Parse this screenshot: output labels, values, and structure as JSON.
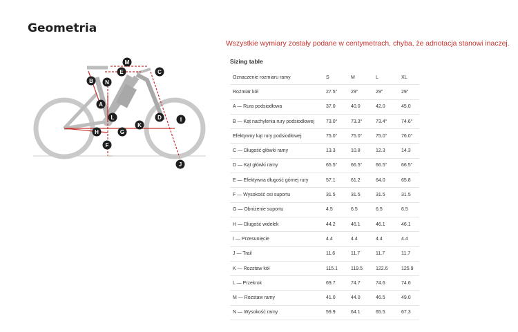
{
  "page": {
    "title": "Geometria",
    "note": "Wszystkie wymiary zostały podane w centymetrach, chyba, że adnotacja stanowi inaczej.",
    "accent_color": "#c8302c"
  },
  "diagram": {
    "image": "bike-geometry-diagram",
    "labels": [
      "M",
      "E",
      "C",
      "B",
      "N",
      "A",
      "L",
      "H",
      "G",
      "K",
      "D",
      "I",
      "F",
      "J"
    ]
  },
  "sizing": {
    "title": "Sizing table",
    "headers": [
      "Oznaczenie rozmiaru ramy",
      "S",
      "M",
      "L",
      "XL"
    ],
    "rows": [
      [
        "Rozmiar kół",
        "27.5\"",
        "29\"",
        "29\"",
        "29\""
      ],
      [
        "A — Rura podsiodłowa",
        "37.0",
        "40.0",
        "42.0",
        "45.0"
      ],
      [
        "B — Kąt nachylenia rury podsiodłowej",
        "73.0°",
        "73.3°",
        "73.4°",
        "74.6°"
      ],
      [
        "Efektywny kąt rury podsiodłowej",
        "75.0°",
        "75.0°",
        "75.0°",
        "76.0°"
      ],
      [
        "C — Długość główki ramy",
        "13.3",
        "10.8",
        "12.3",
        "14.3"
      ],
      [
        "D — Kąt główki ramy",
        "65.5°",
        "66.5°",
        "66.5°",
        "66.5°"
      ],
      [
        "E — Efektywna długość górnej rury",
        "57.1",
        "61.2",
        "64.0",
        "65.8"
      ],
      [
        "F — Wysokość osi suportu",
        "31.5",
        "31.5",
        "31.5",
        "31.5"
      ],
      [
        "G — Obniżenie suportu",
        "4.5",
        "6.5",
        "6.5",
        "6.5"
      ],
      [
        "H — Długość widełek",
        "44.2",
        "46.1",
        "46.1",
        "46.1"
      ],
      [
        "I — Przesunięcie",
        "4.4",
        "4.4",
        "4.4",
        "4.4"
      ],
      [
        "J — Trail",
        "11.6",
        "11.7",
        "11.7",
        "11.7"
      ],
      [
        "K — Rozstaw kół",
        "115.1",
        "119.5",
        "122.6",
        "125.9"
      ],
      [
        "L — Przekrok",
        "69.7",
        "74.7",
        "74.6",
        "74.6"
      ],
      [
        "M — Rozstaw ramy",
        "41.0",
        "44.0",
        "46.5",
        "49.0"
      ],
      [
        "N — Wysokość ramy",
        "59.9",
        "64.1",
        "65.5",
        "67.3"
      ]
    ]
  }
}
